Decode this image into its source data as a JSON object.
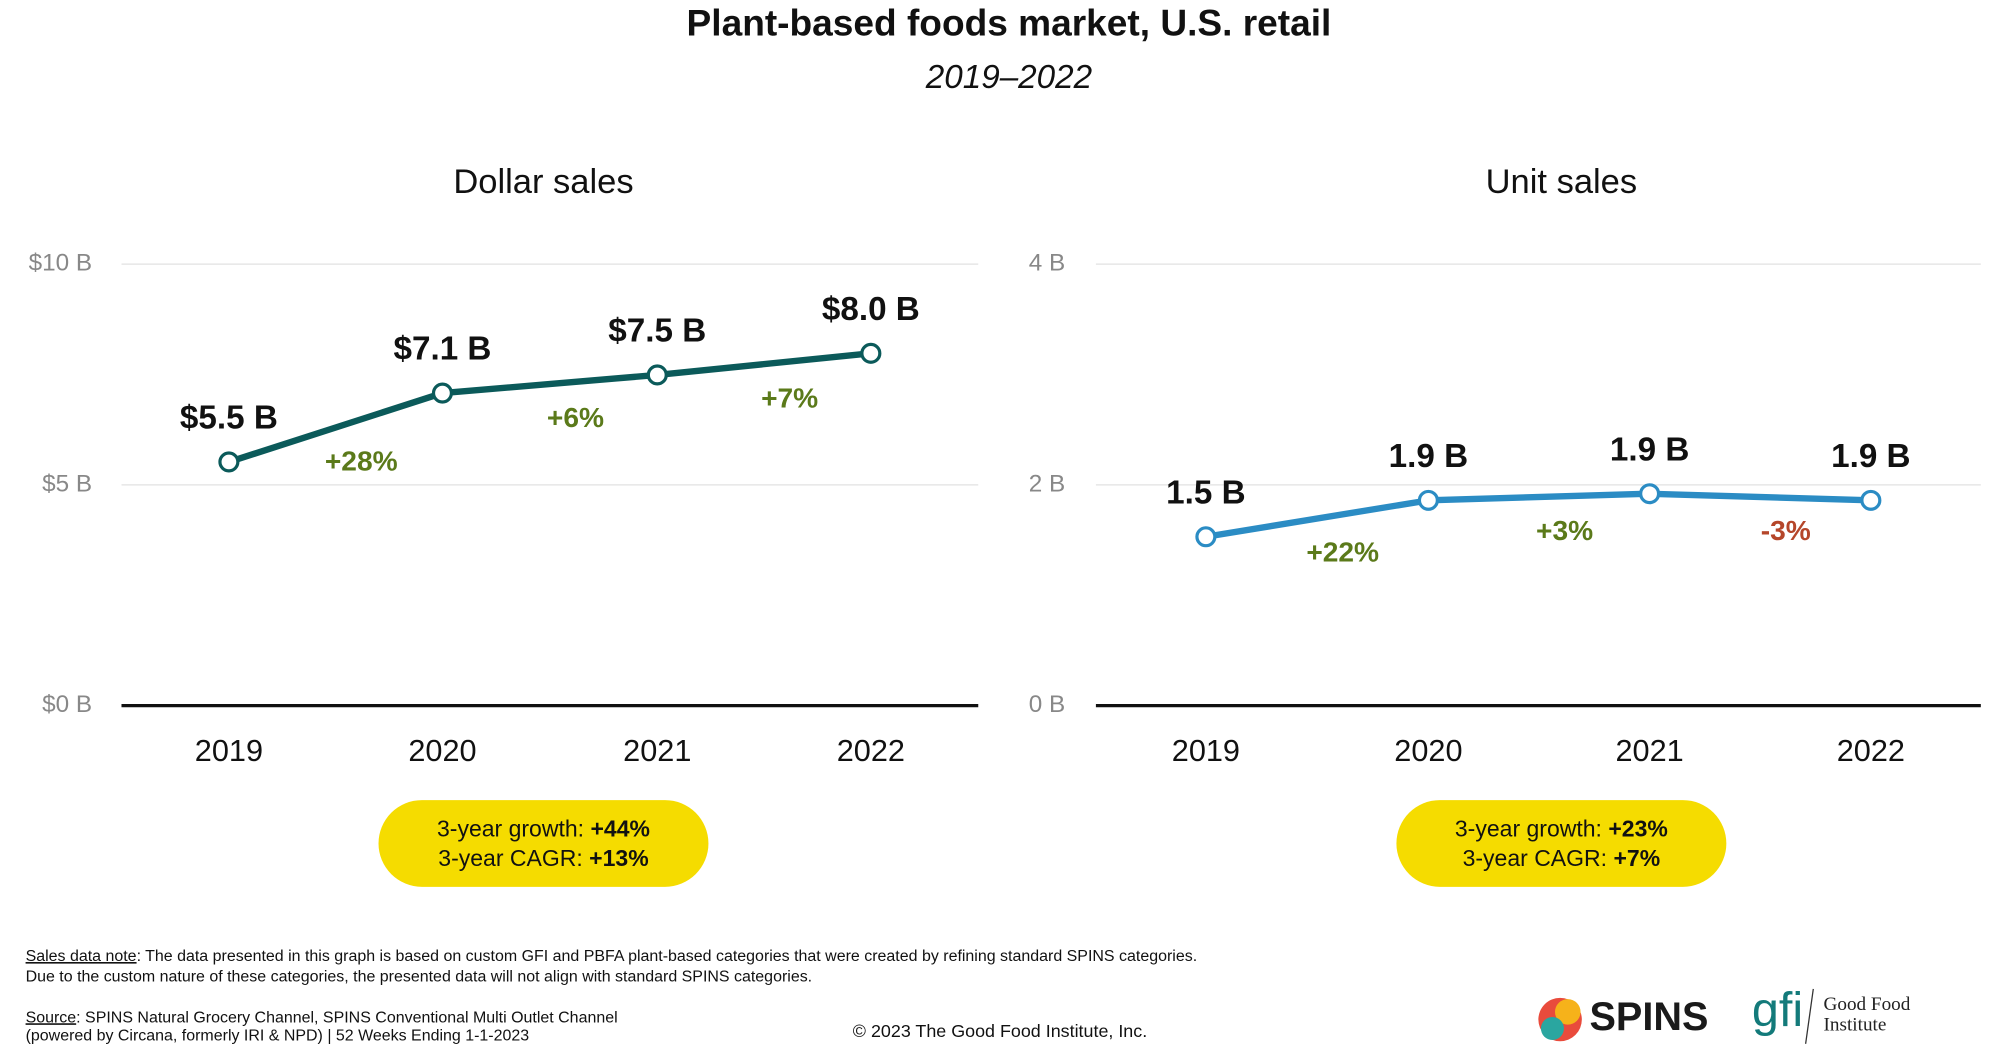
{
  "title": "Plant-based foods market, U.S. retail",
  "subtitle": "2019–2022",
  "chart_data": [
    {
      "type": "line",
      "title": "Dollar sales",
      "categories": [
        "2019",
        "2020",
        "2021",
        "2022"
      ],
      "values": [
        5.52,
        7.08,
        7.49,
        7.98
      ],
      "value_labels": [
        "$5.5 B",
        "$7.1 B",
        "$7.5 B",
        "$8.0 B"
      ],
      "color": "#0b5a5a",
      "ylim": [
        0,
        10
      ],
      "yticks": [
        {
          "value": 0,
          "label": "$0 B"
        },
        {
          "value": 5,
          "label": "$5 B"
        },
        {
          "value": 10,
          "label": "$10 B"
        }
      ],
      "grid": true,
      "annotations": [
        {
          "text": "+28%",
          "color": "#5b7a1a"
        },
        {
          "text": "+6%",
          "color": "#5b7a1a"
        },
        {
          "text": "+7%",
          "color": "#5b7a1a"
        }
      ],
      "summary": {
        "growth_label": "3-year growth:",
        "growth": "+44%",
        "cagr_label": "3-year CAGR:",
        "cagr": "+13%"
      }
    },
    {
      "type": "line",
      "title": "Unit sales",
      "categories": [
        "2019",
        "2020",
        "2021",
        "2022"
      ],
      "values": [
        1.53,
        1.86,
        1.92,
        1.86
      ],
      "value_labels": [
        "1.5 B",
        "1.9 B",
        "1.9 B",
        "1.9 B"
      ],
      "color": "#2b8cc4",
      "ylim": [
        0,
        4
      ],
      "yticks": [
        {
          "value": 0,
          "label": "0 B"
        },
        {
          "value": 2,
          "label": "2 B"
        },
        {
          "value": 4,
          "label": "4 B"
        }
      ],
      "grid": true,
      "annotations": [
        {
          "text": "+22%",
          "color": "#5b7a1a"
        },
        {
          "text": "+3%",
          "color": "#5b7a1a"
        },
        {
          "text": "-3%",
          "color": "#b5462a"
        }
      ],
      "summary": {
        "growth_label": "3-year growth:",
        "growth": "+23%",
        "cagr_label": "3-year CAGR:",
        "cagr": "+7%"
      }
    }
  ],
  "note": {
    "label": "Sales data note",
    "lines": [
      ": The data presented in this graph is based on custom GFI and PBFA plant-based categories that were created by refining standard SPINS categories.",
      "Due to the custom nature of these categories, the presented data will not align with standard SPINS categories."
    ]
  },
  "source": {
    "label": "Source",
    "lines": [
      ": SPINS Natural Grocery Channel, SPINS Conventional Multi Outlet Channel",
      "(powered by Circana, formerly IRI & NPD) | 52 Weeks Ending 1-1-2023"
    ]
  },
  "copyright": "© 2023 The Good Food Institute, Inc.",
  "logos": {
    "spins": "SPINS",
    "gfi": "gfi",
    "gfi_name": [
      "Good Food",
      "Institute"
    ]
  }
}
